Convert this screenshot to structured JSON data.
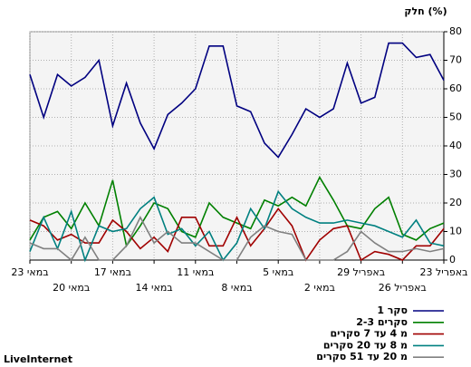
{
  "chart_data": {
    "type": "line",
    "title": "חלק (%)",
    "categories": [
      "23 במאי",
      null,
      null,
      "20 במאי",
      null,
      null,
      "17 במאי",
      null,
      null,
      "14 במאי",
      null,
      null,
      "11 במאי",
      null,
      null,
      "8 במאי",
      null,
      null,
      "5 במאי",
      null,
      null,
      "2 במאי",
      null,
      null,
      "29 באפריל",
      null,
      null,
      "26 באפריל",
      null,
      null,
      "23 באפריל"
    ],
    "ylim": [
      0,
      80
    ],
    "yticks": [
      0,
      10,
      20,
      30,
      40,
      50,
      60,
      70,
      80
    ],
    "grid": true,
    "series": [
      {
        "name": "סקר 1",
        "color": "#000080",
        "values": [
          65,
          50,
          65,
          61,
          64,
          70,
          47,
          62,
          48,
          39,
          51,
          55,
          60,
          75,
          75,
          54,
          52,
          41,
          36,
          44,
          53,
          50,
          53,
          69,
          55,
          57,
          76,
          76,
          71,
          72,
          63
        ]
      },
      {
        "name": "2-3 סקרים",
        "color": "#008000",
        "values": [
          7,
          15,
          17,
          11,
          20,
          12,
          28,
          5,
          12,
          20,
          18,
          10,
          8,
          20,
          15,
          13,
          11,
          21,
          19,
          22,
          19,
          29,
          21,
          12,
          11,
          18,
          22,
          9,
          7,
          11,
          13
        ]
      },
      {
        "name": "מ 4 עד 7 סקרים",
        "color": "#a00000",
        "values": [
          14,
          12,
          7,
          9,
          6,
          6,
          14,
          10,
          4,
          8,
          3,
          15,
          15,
          5,
          5,
          15,
          5,
          11,
          18,
          12,
          0,
          7,
          11,
          12,
          0,
          3,
          2,
          0,
          5,
          5,
          11
        ]
      },
      {
        "name": "מ 8 עד 20 סקרים",
        "color": "#008080",
        "values": [
          3,
          15,
          4,
          17,
          0,
          12,
          10,
          11,
          18,
          22,
          9,
          11,
          5,
          10,
          0,
          6,
          18,
          11,
          24,
          18,
          15,
          13,
          13,
          14,
          13,
          12,
          10,
          8,
          14,
          6,
          5
        ]
      },
      {
        "name": "מ 20 עד 51 סקרים",
        "color": "#808080",
        "values": [
          6,
          4,
          4,
          0,
          8,
          0,
          0,
          5,
          15,
          6,
          10,
          6,
          6,
          3,
          0,
          0,
          8,
          12,
          10,
          9,
          0,
          0,
          0,
          3,
          10,
          6,
          3,
          3,
          4,
          3,
          4
        ]
      }
    ],
    "footer": "LiveInternet"
  }
}
